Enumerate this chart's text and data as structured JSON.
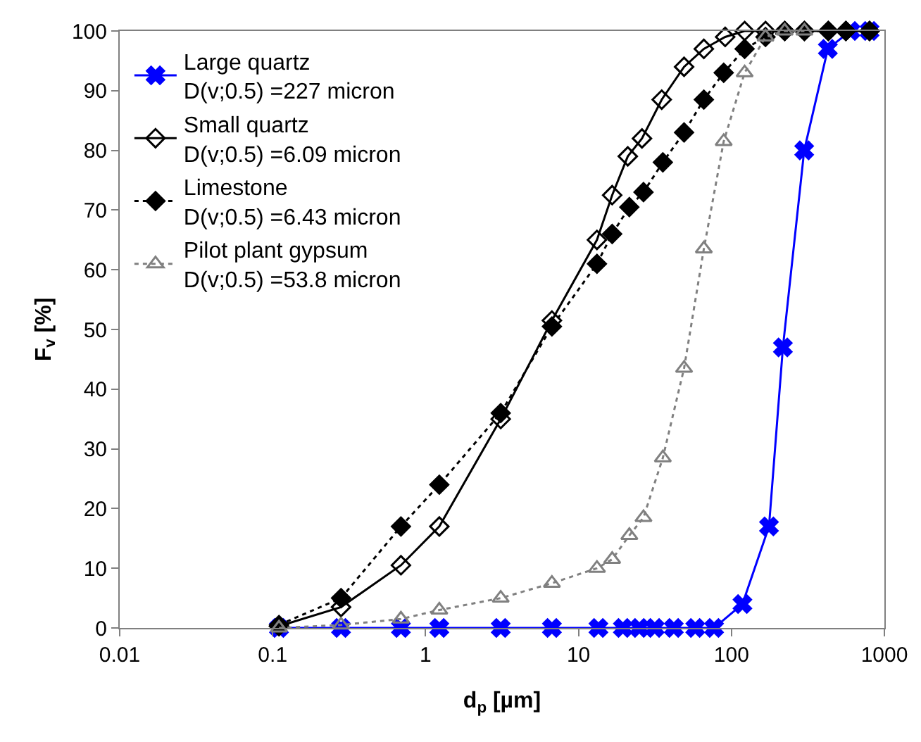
{
  "chart_data": {
    "type": "line",
    "xlabel": "d$_{p}$ [µm]",
    "ylabel": "F$_{v}$ [%]",
    "xlim": [
      0.01,
      1000
    ],
    "xticks": [
      0.01,
      0.1,
      1,
      10,
      100,
      1000
    ],
    "ylim": [
      0,
      100
    ],
    "yticks": [
      0,
      10,
      20,
      30,
      40,
      50,
      60,
      70,
      80,
      90,
      100
    ],
    "log": "x",
    "grid": false,
    "legend": "top left",
    "series": [
      {
        "name": "Large quartz\nD(v;0.5) =227 micron",
        "color": "#0000ff",
        "marker": "cross",
        "line_style": "solid",
        "x": [
          0.11,
          0.28,
          0.69,
          1.23,
          3.1,
          6.7,
          13.5,
          19.5,
          25,
          31.5,
          42,
          58,
          77,
          118,
          176,
          217,
          299,
          427,
          600,
          800
        ],
        "values": [
          0,
          0,
          0,
          0,
          0,
          0,
          0,
          0,
          0,
          0,
          0,
          0,
          0,
          4,
          17,
          47,
          80,
          97,
          100,
          100
        ]
      },
      {
        "name": "Small quartz\nD(v;0.5) =6.09 micron",
        "color": "#000000",
        "marker": "diamond-open",
        "line_style": "solid",
        "x": [
          0.11,
          0.28,
          0.69,
          1.23,
          3.1,
          6.7,
          13.2,
          16.6,
          21,
          26,
          35,
          49,
          66,
          91,
          122,
          167,
          223,
          300,
          430,
          560,
          800
        ],
        "values": [
          0.3,
          3.5,
          10.5,
          17,
          35,
          51.5,
          65,
          72.5,
          79,
          82,
          88.5,
          94,
          97,
          99,
          100,
          100,
          100,
          100,
          100,
          100,
          100
        ]
      },
      {
        "name": "Limestone\nD(v;0.5) =6.43 micron",
        "color": "#000000",
        "marker": "diamond",
        "line_style": "dotted",
        "x": [
          0.11,
          0.28,
          0.69,
          1.23,
          3.1,
          6.7,
          13.2,
          16.6,
          21.5,
          26.6,
          35.6,
          49,
          66,
          89,
          122,
          167,
          223,
          300,
          430,
          560,
          800
        ],
        "values": [
          0.5,
          5,
          17,
          24,
          36,
          50.5,
          61,
          66,
          70.5,
          73,
          78,
          83,
          88.5,
          93,
          97,
          99,
          100,
          100,
          100,
          100,
          100
        ]
      },
      {
        "name": "Pilot plant gypsum\nD(v;0.5) =53.8 micron",
        "color": "#808080",
        "marker": "triangle-open",
        "line_style": "dotted",
        "x": [
          0.11,
          0.28,
          0.69,
          1.23,
          3.1,
          6.7,
          13.2,
          16.6,
          21.5,
          26.6,
          35.6,
          49,
          66,
          89,
          122,
          167,
          223,
          300
        ],
        "values": [
          0,
          0.5,
          1.5,
          3,
          5,
          7.5,
          10,
          11.5,
          15.5,
          18.5,
          28.5,
          43.5,
          63.5,
          81.5,
          93,
          99,
          100,
          100
        ]
      }
    ]
  }
}
